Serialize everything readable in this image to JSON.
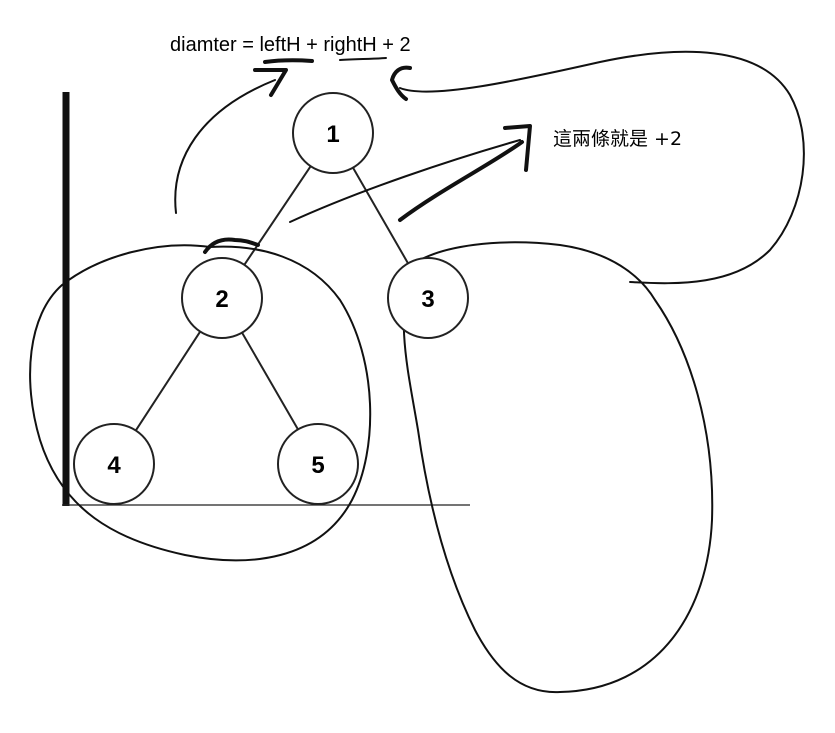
{
  "formula": {
    "text": "diamter = leftH + rightH + 2"
  },
  "note": {
    "text": "這兩條就是 +2"
  },
  "tree": {
    "nodes": [
      {
        "id": "1",
        "label": "1"
      },
      {
        "id": "2",
        "label": "2"
      },
      {
        "id": "3",
        "label": "3"
      },
      {
        "id": "4",
        "label": "4"
      },
      {
        "id": "5",
        "label": "5"
      }
    ],
    "edges": [
      {
        "from": "1",
        "to": "2"
      },
      {
        "from": "1",
        "to": "3"
      },
      {
        "from": "2",
        "to": "4"
      },
      {
        "from": "2",
        "to": "5"
      }
    ]
  },
  "colors": {
    "ink": "#111111",
    "background": "#ffffff"
  }
}
